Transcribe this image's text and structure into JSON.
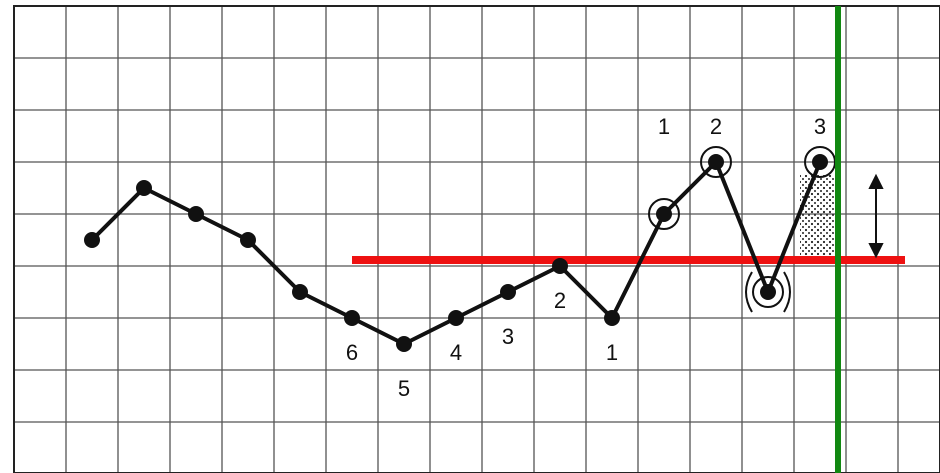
{
  "labels": {
    "down_count": [
      "6",
      "5",
      "4",
      "3",
      "2",
      "1"
    ],
    "up_count": [
      "1",
      "2",
      "3"
    ]
  }
}
